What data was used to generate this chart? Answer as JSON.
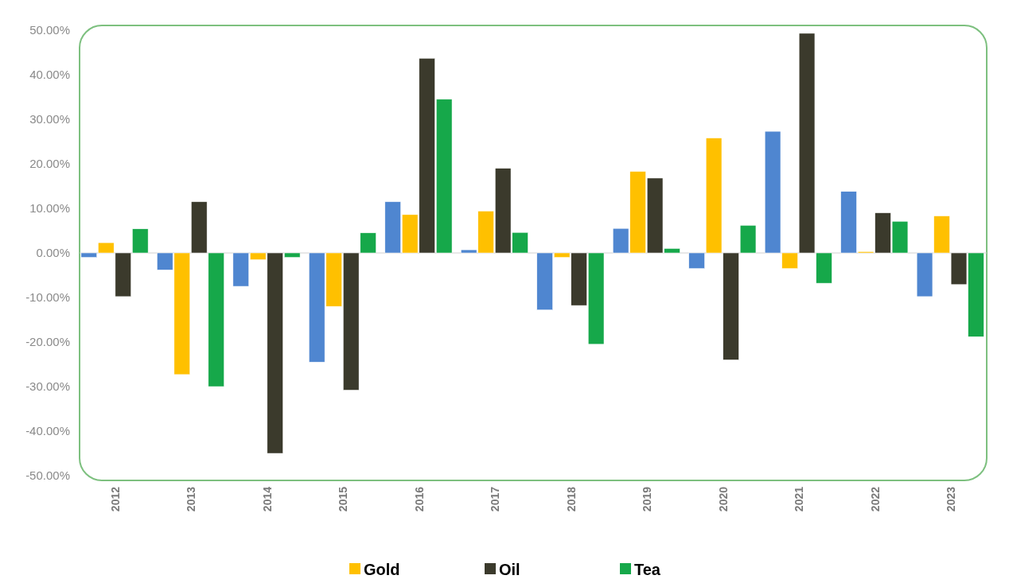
{
  "chart_data": {
    "type": "bar",
    "categories": [
      "2012",
      "2013",
      "2014",
      "2015",
      "2016",
      "2017",
      "2018",
      "2019",
      "2020",
      "2021",
      "2022",
      "2023"
    ],
    "series": [
      {
        "color": "#4f86d0",
        "values": [
          -1,
          -3.8,
          -7.5,
          -24.5,
          11.5,
          0.7,
          -12.8,
          5.5,
          -3.5,
          27.3,
          13.8,
          -9.8
        ]
      },
      {
        "name": "Gold",
        "color": "#ffc000",
        "values": [
          2.3,
          -27.3,
          -1.5,
          -12,
          8.6,
          9.4,
          -1,
          18.3,
          25.8,
          -3.5,
          0.3,
          8.3
        ]
      },
      {
        "name": "Oil",
        "color": "#3b3a2c",
        "values": [
          -9.8,
          11.5,
          -45,
          -30.8,
          43.7,
          19,
          -11.8,
          16.8,
          -24,
          49.3,
          9,
          -7.1
        ]
      },
      {
        "name": "Tea",
        "color": "#16a84a",
        "values": [
          5.4,
          -30,
          -1,
          4.5,
          34.5,
          4.6,
          -20.5,
          1,
          6.2,
          -6.8,
          7.1,
          -18.8
        ]
      }
    ],
    "ylim": [
      -50,
      50
    ],
    "yticks": [
      {
        "value": -50,
        "label": "-50.00%"
      },
      {
        "value": -40,
        "label": "-40.00%"
      },
      {
        "value": -30,
        "label": "-30.00%"
      },
      {
        "value": -20,
        "label": "-20.00%"
      },
      {
        "value": -10,
        "label": "-10.00%"
      },
      {
        "value": 0,
        "label": "0.00%"
      },
      {
        "value": 10,
        "label": "10.00%"
      },
      {
        "value": 20,
        "label": "20.00%"
      },
      {
        "value": 30,
        "label": "30.00%"
      },
      {
        "value": 40,
        "label": "40.00%"
      },
      {
        "value": 50,
        "label": "50.00%"
      }
    ],
    "legend": "bottom"
  }
}
